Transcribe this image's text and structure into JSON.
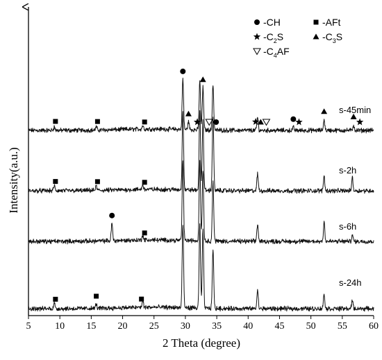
{
  "chart_data": {
    "type": "line",
    "xlabel": "2 Theta (degree)",
    "ylabel": "Intensity(a.u.)",
    "xlim": [
      5,
      60
    ],
    "xticks": [
      "5",
      "10",
      "15",
      "20",
      "25",
      "30",
      "35",
      "40",
      "45",
      "50",
      "55",
      "60"
    ],
    "legend": [
      {
        "marker": "circle",
        "text": "-CH",
        "sub": ""
      },
      {
        "marker": "square",
        "text": "-AFt",
        "sub": ""
      },
      {
        "marker": "star",
        "text": "-C S",
        "sub": "2"
      },
      {
        "marker": "triangle",
        "text": "-C S",
        "sub": "3"
      },
      {
        "marker": "triangle-open",
        "text": "-C AF",
        "sub": "4"
      }
    ],
    "series": [
      {
        "name": "s-45min",
        "baseline": 0,
        "peaks": [
          {
            "x": 9.1,
            "h": 0.06
          },
          {
            "x": 15.8,
            "h": 0.05
          },
          {
            "x": 23.2,
            "h": 0.06
          },
          {
            "x": 29.6,
            "h": 0.86
          },
          {
            "x": 30.5,
            "h": 0.14
          },
          {
            "x": 32.3,
            "h": 0.84
          },
          {
            "x": 32.8,
            "h": 0.72
          },
          {
            "x": 34.4,
            "h": 0.78
          },
          {
            "x": 41.5,
            "h": 0.22
          },
          {
            "x": 47.2,
            "h": 0.05
          },
          {
            "x": 52.1,
            "h": 0.18
          },
          {
            "x": 56.8,
            "h": 0.09
          }
        ],
        "markers": [
          {
            "x": 9.3,
            "type": "square"
          },
          {
            "x": 16.0,
            "type": "square"
          },
          {
            "x": 23.5,
            "type": "square"
          },
          {
            "x": 29.6,
            "type": "circle"
          },
          {
            "x": 30.5,
            "type": "triangle"
          },
          {
            "x": 31.9,
            "type": "star"
          },
          {
            "x": 32.8,
            "type": "triangle"
          },
          {
            "x": 33.8,
            "type": "triangle-open"
          },
          {
            "x": 34.9,
            "type": "circle"
          },
          {
            "x": 41.2,
            "type": "star"
          },
          {
            "x": 42.0,
            "type": "triangle"
          },
          {
            "x": 42.9,
            "type": "triangle-open"
          },
          {
            "x": 47.2,
            "type": "circle"
          },
          {
            "x": 48.1,
            "type": "star"
          },
          {
            "x": 52.1,
            "type": "triangle"
          },
          {
            "x": 56.8,
            "type": "triangle"
          },
          {
            "x": 57.8,
            "type": "star"
          }
        ]
      },
      {
        "name": "s-2h",
        "baseline": 1,
        "peaks": [
          {
            "x": 9.1,
            "h": 0.06
          },
          {
            "x": 15.8,
            "h": 0.05
          },
          {
            "x": 23.2,
            "h": 0.06
          },
          {
            "x": 29.6,
            "h": 0.95
          },
          {
            "x": 32.3,
            "h": 0.95
          },
          {
            "x": 32.8,
            "h": 0.85
          },
          {
            "x": 34.4,
            "h": 0.9
          },
          {
            "x": 41.5,
            "h": 0.2
          },
          {
            "x": 52.1,
            "h": 0.18
          },
          {
            "x": 56.6,
            "h": 0.16
          }
        ],
        "markers": [
          {
            "x": 9.3,
            "type": "square"
          },
          {
            "x": 16.0,
            "type": "square"
          },
          {
            "x": 23.5,
            "type": "square"
          }
        ]
      },
      {
        "name": "s-6h",
        "baseline": 2,
        "peaks": [
          {
            "x": 18.3,
            "h": 0.22
          },
          {
            "x": 23.2,
            "h": 0.06
          },
          {
            "x": 29.6,
            "h": 1.0
          },
          {
            "x": 32.3,
            "h": 1.0
          },
          {
            "x": 32.8,
            "h": 0.9
          },
          {
            "x": 34.4,
            "h": 0.75
          },
          {
            "x": 41.5,
            "h": 0.22
          },
          {
            "x": 52.1,
            "h": 0.25
          },
          {
            "x": 56.6,
            "h": 0.08
          }
        ],
        "markers": [
          {
            "x": 18.3,
            "type": "circle"
          },
          {
            "x": 23.5,
            "type": "square"
          }
        ]
      },
      {
        "name": "s-24h",
        "baseline": 3,
        "peaks": [
          {
            "x": 9.1,
            "h": 0.07
          },
          {
            "x": 15.8,
            "h": 0.05
          },
          {
            "x": 23.2,
            "h": 0.08
          },
          {
            "x": 29.6,
            "h": 1.0
          },
          {
            "x": 32.3,
            "h": 1.0
          },
          {
            "x": 32.8,
            "h": 0.95
          },
          {
            "x": 34.4,
            "h": 0.72
          },
          {
            "x": 41.5,
            "h": 0.22
          },
          {
            "x": 52.1,
            "h": 0.18
          },
          {
            "x": 56.6,
            "h": 0.1
          }
        ],
        "markers": [
          {
            "x": 9.3,
            "type": "square"
          },
          {
            "x": 15.8,
            "type": "square"
          },
          {
            "x": 23.0,
            "type": "square"
          }
        ]
      }
    ]
  }
}
